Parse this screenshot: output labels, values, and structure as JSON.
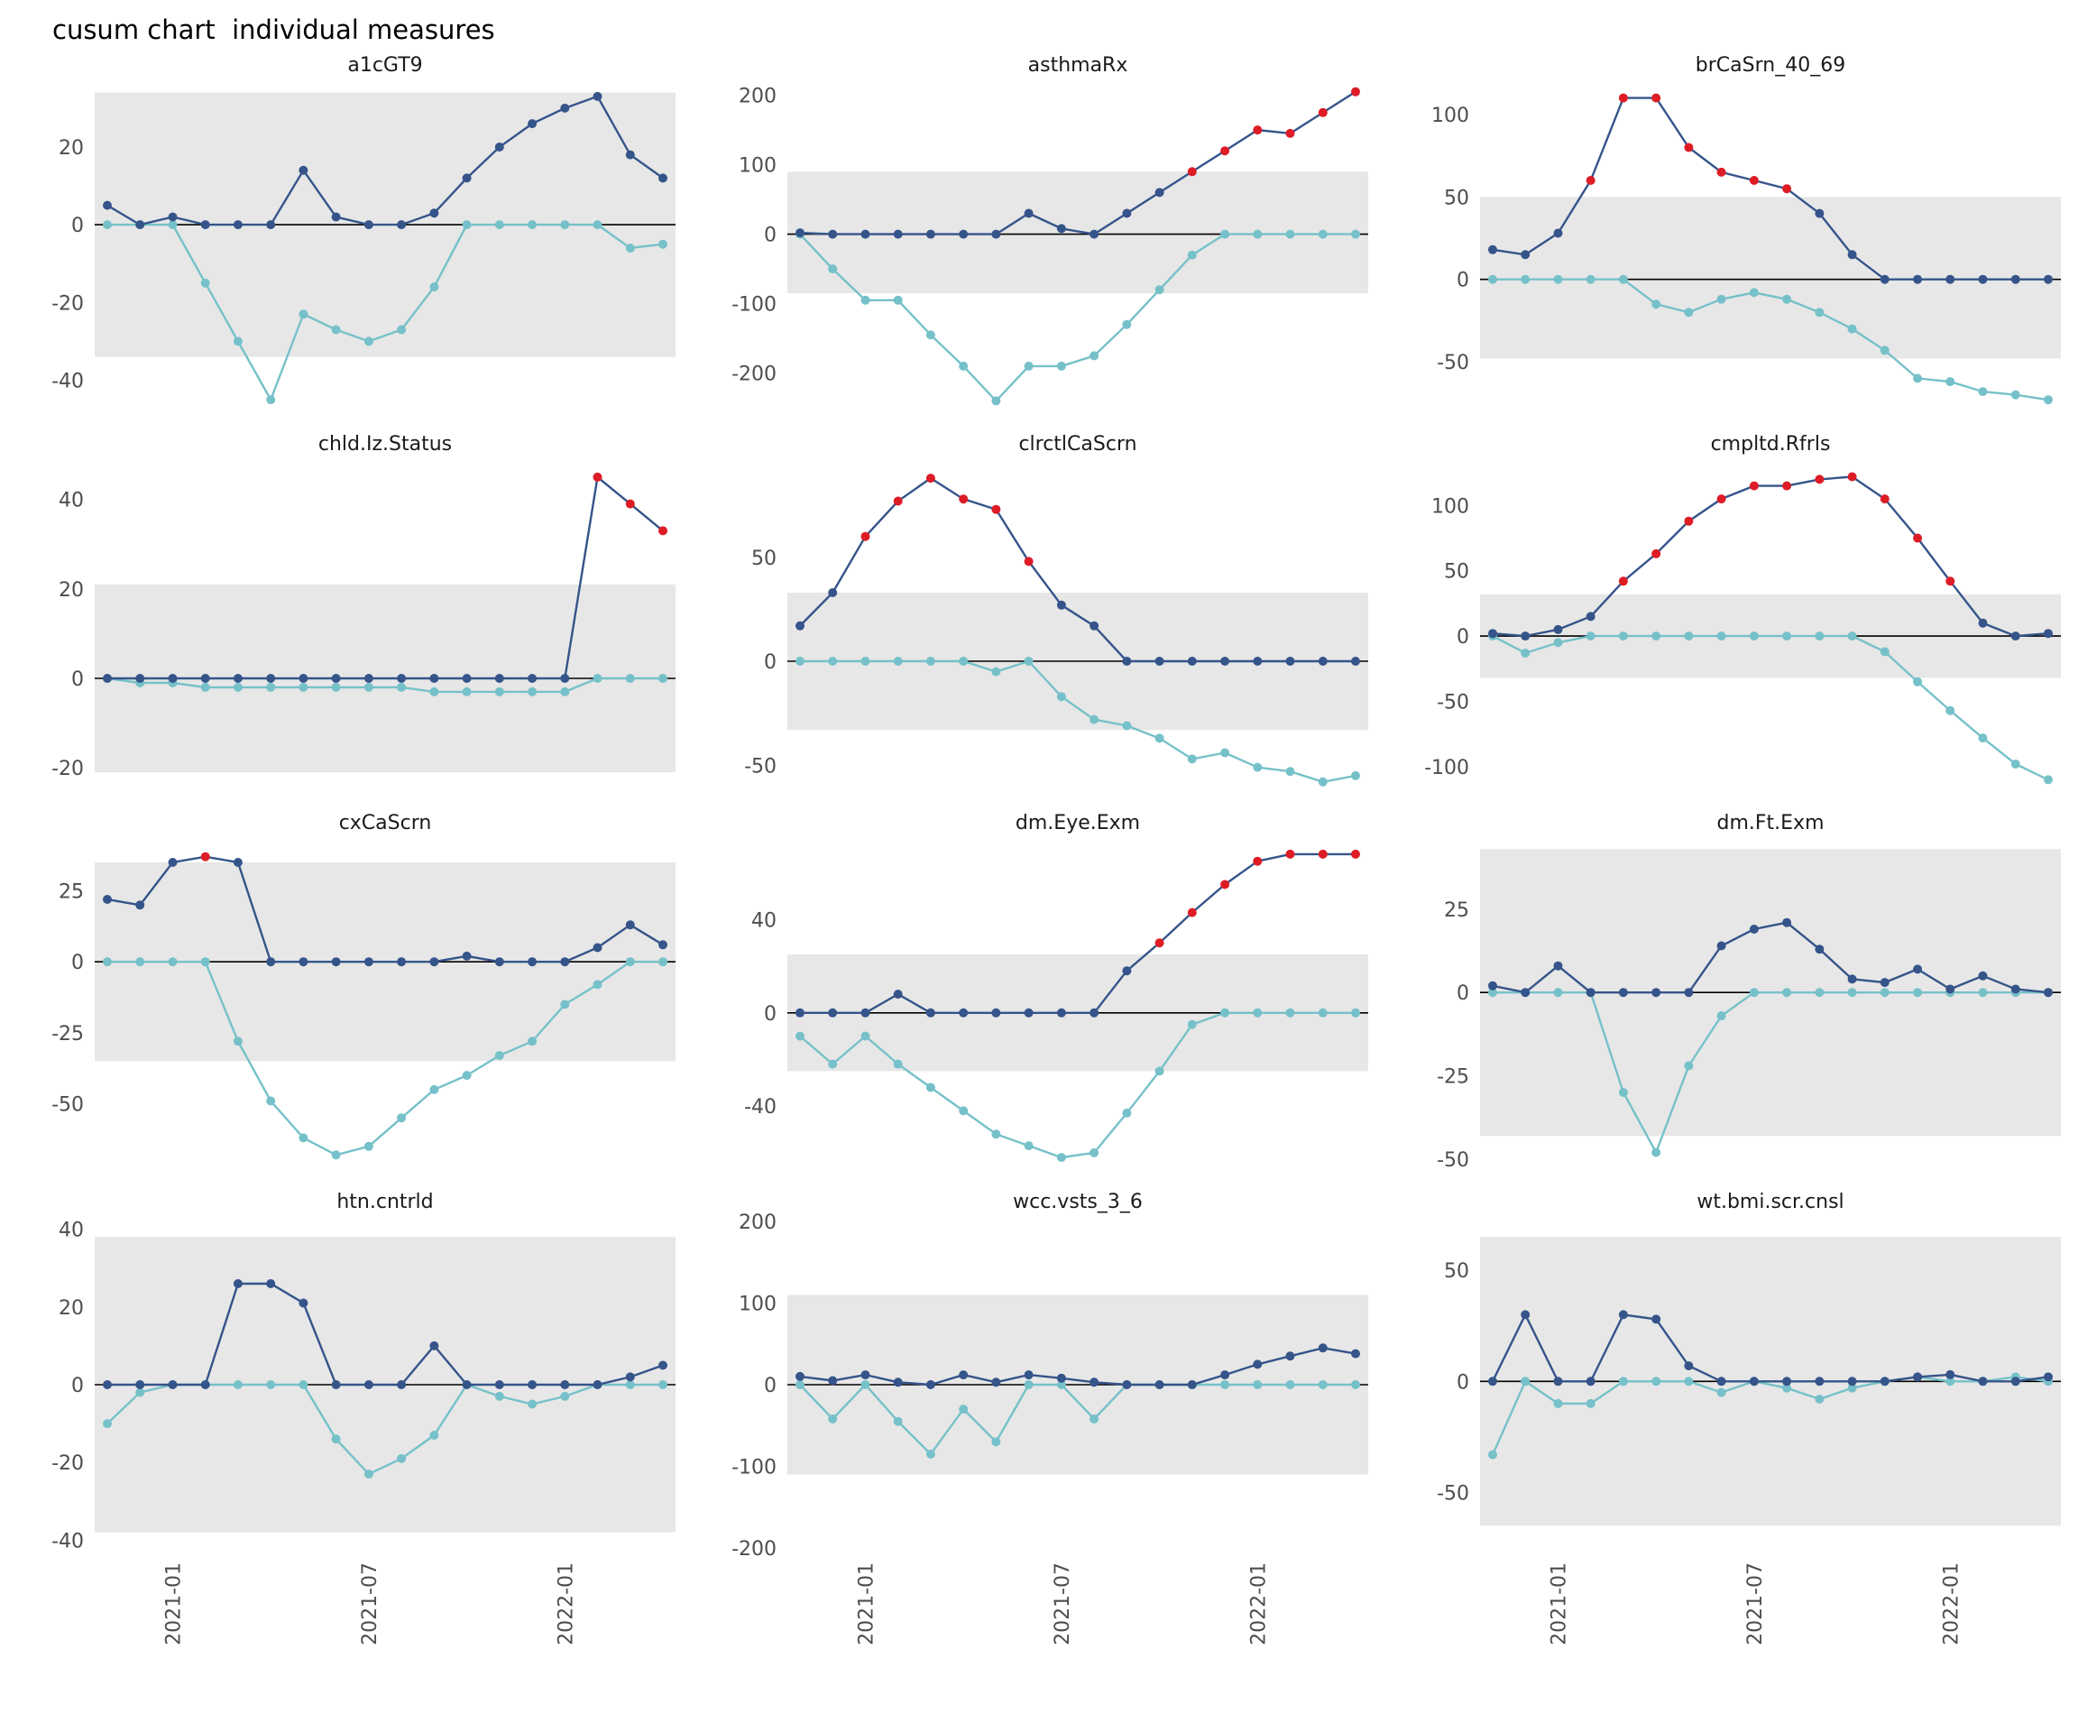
{
  "title": "cusum chart  individual measures",
  "colors": {
    "upper_series": "#35548a",
    "lower_series": "#76c1c9",
    "signal": "#dd1c26",
    "band": "#e7e7e7",
    "zero_line": "#000000",
    "axis_text": "#4d4d4d",
    "panel_title": "#1a1a1a"
  },
  "x_axis": {
    "tick_labels": [
      "2021-01",
      "2021-07",
      "2022-01"
    ],
    "tick_index": [
      2,
      8,
      14
    ],
    "n_points": 18
  },
  "chart_data": [
    {
      "type": "line",
      "title": "a1cGT9",
      "ylim": [
        -48,
        36
      ],
      "yticks": [
        20,
        0,
        -20,
        -40
      ],
      "band": [
        -34,
        34
      ],
      "upper": [
        5,
        0,
        2,
        0,
        0,
        0,
        14,
        2,
        0,
        0,
        3,
        12,
        20,
        26,
        30,
        33,
        18,
        12
      ],
      "lower": [
        0,
        0,
        0,
        -15,
        -30,
        -45,
        -23,
        -27,
        -30,
        -27,
        -16,
        0,
        0,
        0,
        0,
        0,
        -6,
        -5
      ],
      "red_upper": []
    },
    {
      "type": "line",
      "title": "asthmaRx",
      "ylim": [
        -255,
        215
      ],
      "yticks": [
        200,
        100,
        0,
        -100,
        -200
      ],
      "band": [
        -85,
        90
      ],
      "upper": [
        2,
        0,
        0,
        0,
        0,
        0,
        0,
        30,
        8,
        0,
        30,
        60,
        90,
        120,
        150,
        145,
        175,
        205
      ],
      "lower": [
        0,
        -50,
        -95,
        -95,
        -145,
        -190,
        -240,
        -190,
        -190,
        -175,
        -130,
        -80,
        -30,
        0,
        0,
        0,
        0,
        0
      ],
      "red_upper": [
        12,
        13,
        14,
        15,
        16,
        17
      ]
    },
    {
      "type": "line",
      "title": "brCaSrn_40_69",
      "ylim": [
        -80,
        118
      ],
      "yticks": [
        100,
        50,
        0,
        -50
      ],
      "band": [
        -48,
        50
      ],
      "upper": [
        18,
        15,
        28,
        60,
        110,
        110,
        80,
        65,
        60,
        55,
        40,
        15,
        0,
        0,
        0,
        0,
        0,
        0
      ],
      "lower": [
        0,
        0,
        0,
        0,
        0,
        -15,
        -20,
        -12,
        -8,
        -12,
        -20,
        -30,
        -43,
        -60,
        -62,
        -68,
        -70,
        -73
      ],
      "red_upper": [
        3,
        4,
        5,
        6,
        7,
        8,
        9
      ]
    },
    {
      "type": "line",
      "title": "chld.Iz.Status",
      "ylim": [
        -25,
        48
      ],
      "yticks": [
        40,
        20,
        0,
        -20
      ],
      "band": [
        -21,
        21
      ],
      "upper": [
        0,
        0,
        0,
        0,
        0,
        0,
        0,
        0,
        0,
        0,
        0,
        0,
        0,
        0,
        0,
        45,
        39,
        33
      ],
      "lower": [
        0,
        -1,
        -1,
        -2,
        -2,
        -2,
        -2,
        -2,
        -2,
        -2,
        -3,
        -3,
        -3,
        -3,
        -3,
        0,
        0,
        0
      ],
      "red_upper": [
        15,
        16,
        17
      ]
    },
    {
      "type": "line",
      "title": "clrctlCaScrn",
      "ylim": [
        -62,
        95
      ],
      "yticks": [
        50,
        0,
        -50
      ],
      "band": [
        -33,
        33
      ],
      "upper": [
        17,
        33,
        60,
        77,
        88,
        78,
        73,
        48,
        27,
        17,
        0,
        0,
        0,
        0,
        0,
        0,
        0,
        0
      ],
      "lower": [
        0,
        0,
        0,
        0,
        0,
        0,
        -5,
        0,
        -17,
        -28,
        -31,
        -37,
        -47,
        -44,
        -51,
        -53,
        -58,
        -55
      ],
      "red_upper": [
        2,
        3,
        4,
        5,
        6,
        7
      ]
    },
    {
      "type": "line",
      "title": "cmpltd.Rfrls",
      "ylim": [
        -118,
        132
      ],
      "yticks": [
        100,
        50,
        0,
        -50,
        -100
      ],
      "band": [
        -32,
        32
      ],
      "upper": [
        2,
        0,
        5,
        15,
        42,
        63,
        88,
        105,
        115,
        115,
        120,
        122,
        105,
        75,
        42,
        10,
        0,
        2
      ],
      "lower": [
        0,
        -13,
        -5,
        0,
        0,
        0,
        0,
        0,
        0,
        0,
        0,
        0,
        -12,
        -35,
        -57,
        -78,
        -98,
        -110
      ],
      "red_upper": [
        4,
        5,
        6,
        7,
        8,
        9,
        10,
        11,
        12,
        13,
        14
      ]
    },
    {
      "type": "line",
      "title": "cxCaScrn",
      "ylim": [
        -73,
        42
      ],
      "yticks": [
        25,
        0,
        -25,
        -50
      ],
      "band": [
        -35,
        35
      ],
      "upper": [
        22,
        20,
        35,
        37,
        35,
        0,
        0,
        0,
        0,
        0,
        0,
        2,
        0,
        0,
        0,
        5,
        13,
        6
      ],
      "lower": [
        0,
        0,
        0,
        0,
        -28,
        -49,
        -62,
        -68,
        -65,
        -55,
        -45,
        -40,
        -33,
        -28,
        -15,
        -8,
        0,
        0
      ],
      "red_upper": [
        3
      ]
    },
    {
      "type": "line",
      "title": "dm.Eye.Exm",
      "ylim": [
        -67,
        73
      ],
      "yticks": [
        40,
        0,
        -40
      ],
      "band": [
        -25,
        25
      ],
      "upper": [
        0,
        0,
        0,
        8,
        0,
        0,
        0,
        0,
        0,
        0,
        18,
        30,
        43,
        55,
        65,
        68,
        68,
        68
      ],
      "lower": [
        -10,
        -22,
        -10,
        -22,
        -32,
        -42,
        -52,
        -57,
        -62,
        -60,
        -43,
        -25,
        -5,
        0,
        0,
        0,
        0,
        0
      ],
      "red_upper": [
        11,
        12,
        13,
        14,
        15,
        16,
        17
      ]
    },
    {
      "type": "line",
      "title": "dm.Ft.Exm",
      "ylim": [
        -53,
        45
      ],
      "yticks": [
        25,
        0,
        -25,
        -50
      ],
      "band": [
        -43,
        43
      ],
      "upper": [
        2,
        0,
        8,
        0,
        0,
        0,
        0,
        14,
        19,
        21,
        13,
        4,
        3,
        7,
        1,
        5,
        1,
        0
      ],
      "lower": [
        0,
        0,
        0,
        0,
        -30,
        -48,
        -22,
        -7,
        0,
        0,
        0,
        0,
        0,
        0,
        0,
        0,
        0,
        0
      ],
      "red_upper": []
    },
    {
      "type": "line",
      "title": "htn.cntrld",
      "ylim": [
        -42,
        42
      ],
      "yticks": [
        40,
        20,
        0,
        -20,
        -40
      ],
      "band": [
        -38,
        38
      ],
      "upper": [
        0,
        0,
        0,
        0,
        26,
        26,
        21,
        0,
        0,
        0,
        10,
        0,
        0,
        0,
        0,
        0,
        2,
        5
      ],
      "lower": [
        -10,
        -2,
        0,
        0,
        0,
        0,
        0,
        -14,
        -23,
        -19,
        -13,
        0,
        -3,
        -5,
        -3,
        0,
        0,
        0
      ],
      "red_upper": []
    },
    {
      "type": "line",
      "title": "wcc.vsts_3_6",
      "ylim": [
        -200,
        200
      ],
      "yticks": [
        200,
        100,
        0,
        -100,
        -200
      ],
      "band": [
        -110,
        110
      ],
      "upper": [
        10,
        5,
        12,
        3,
        0,
        12,
        3,
        12,
        8,
        3,
        0,
        0,
        0,
        12,
        25,
        35,
        45,
        38
      ],
      "lower": [
        0,
        -42,
        0,
        -45,
        -85,
        -30,
        -70,
        0,
        0,
        -42,
        0,
        0,
        0,
        0,
        0,
        0,
        0,
        0
      ],
      "red_upper": []
    },
    {
      "type": "line",
      "title": "wt.bmi.scr.cnsl",
      "ylim": [
        -75,
        72
      ],
      "yticks": [
        50,
        0,
        -50
      ],
      "band": [
        -65,
        65
      ],
      "upper": [
        0,
        30,
        0,
        0,
        30,
        28,
        7,
        0,
        0,
        0,
        0,
        0,
        0,
        2,
        3,
        0,
        0,
        2
      ],
      "lower": [
        -33,
        0,
        -10,
        -10,
        0,
        0,
        0,
        -5,
        0,
        -3,
        -8,
        -3,
        0,
        2,
        0,
        0,
        2,
        0
      ],
      "red_upper": []
    }
  ]
}
